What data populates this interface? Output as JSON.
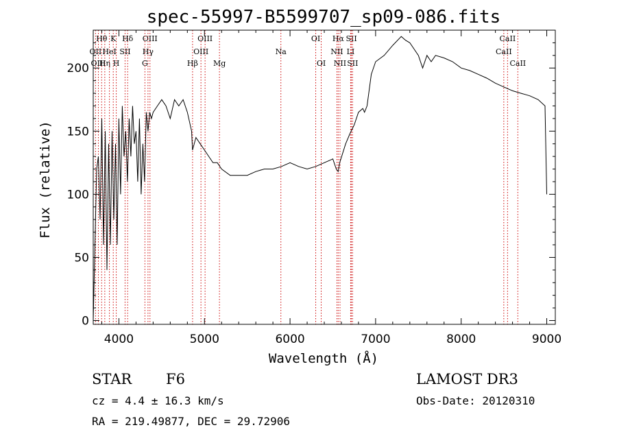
{
  "chart_data": {
    "type": "line",
    "title": "spec-55997-B5599707_sp09-086.fits",
    "xlabel": "Wavelength (Å)",
    "ylabel": "Flux (relative)",
    "xlim": [
      3700,
      9100
    ],
    "ylim": [
      -3,
      230
    ],
    "x_ticks": [
      4000,
      5000,
      6000,
      7000,
      8000,
      9000
    ],
    "y_ticks": [
      0,
      50,
      100,
      150,
      200
    ],
    "x_tick_labels": [
      "4000",
      "5000",
      "6000",
      "7000",
      "8000",
      "9000"
    ],
    "y_tick_labels": [
      "0",
      "50",
      "100",
      "150",
      "200"
    ],
    "line_color": "#000000",
    "marker_color": "#cc0000",
    "series": [
      {
        "x": [
          3700,
          3720,
          3740,
          3760,
          3780,
          3800,
          3820,
          3840,
          3860,
          3880,
          3900,
          3920,
          3940,
          3960,
          3980,
          4000,
          4020,
          4040,
          4060,
          4080,
          4100,
          4120,
          4140,
          4160,
          4180,
          4200,
          4220,
          4240,
          4260,
          4280,
          4300,
          4320,
          4340,
          4360,
          4380,
          4400,
          4450,
          4500,
          4550,
          4600,
          4650,
          4700,
          4750,
          4800,
          4850,
          4860,
          4900,
          4950,
          5000,
          5050,
          5100,
          5150,
          5200,
          5300,
          5400,
          5500,
          5600,
          5700,
          5800,
          5900,
          6000,
          6100,
          6200,
          6300,
          6400,
          6500,
          6540,
          6563,
          6580,
          6650,
          6700,
          6750,
          6800,
          6850,
          6870,
          6900,
          6950,
          7000,
          7100,
          7200,
          7300,
          7350,
          7400,
          7500,
          7550,
          7600,
          7650,
          7700,
          7800,
          7900,
          8000,
          8100,
          8200,
          8300,
          8400,
          8500,
          8600,
          8700,
          8800,
          8900,
          8980,
          9000
        ],
        "y": [
          0,
          60,
          120,
          130,
          80,
          160,
          60,
          150,
          40,
          140,
          60,
          150,
          80,
          140,
          60,
          160,
          100,
          170,
          130,
          150,
          110,
          160,
          130,
          170,
          140,
          150,
          110,
          160,
          100,
          140,
          110,
          165,
          150,
          165,
          160,
          165,
          170,
          175,
          170,
          160,
          175,
          170,
          175,
          165,
          150,
          135,
          145,
          140,
          135,
          130,
          125,
          125,
          120,
          115,
          115,
          115,
          118,
          120,
          120,
          122,
          125,
          122,
          120,
          122,
          125,
          128,
          120,
          118,
          125,
          140,
          148,
          155,
          165,
          168,
          165,
          170,
          195,
          205,
          210,
          218,
          225,
          222,
          220,
          210,
          200,
          210,
          205,
          210,
          208,
          205,
          200,
          198,
          195,
          192,
          188,
          185,
          182,
          180,
          178,
          175,
          170,
          100
        ]
      }
    ],
    "line_markers": [
      {
        "label": "Hθ",
        "wavelength": 3798,
        "row": 0
      },
      {
        "label": "OII",
        "wavelength": 3727,
        "row": 1
      },
      {
        "label": "OIII",
        "wavelength": 3760,
        "row": 2
      },
      {
        "label": "Hη",
        "wavelength": 3835,
        "row": 2
      },
      {
        "label": "HeI",
        "wavelength": 3889,
        "row": 1
      },
      {
        "label": "K",
        "wavelength": 3934,
        "row": 0
      },
      {
        "label": "H",
        "wavelength": 3969,
        "row": 2
      },
      {
        "label": "SII",
        "wavelength": 4072,
        "row": 1
      },
      {
        "label": "Hδ",
        "wavelength": 4102,
        "row": 0
      },
      {
        "label": "OIII",
        "wavelength": 4363,
        "row": 0
      },
      {
        "label": "Hγ",
        "wavelength": 4340,
        "row": 1
      },
      {
        "label": "G",
        "wavelength": 4304,
        "row": 2
      },
      {
        "label": "Hβ",
        "wavelength": 4861,
        "row": 2
      },
      {
        "label": "OIII",
        "wavelength": 5007,
        "row": 0
      },
      {
        "label": "OIII",
        "wavelength": 4959,
        "row": 1
      },
      {
        "label": "Mg",
        "wavelength": 5175,
        "row": 2
      },
      {
        "label": "Na",
        "wavelength": 5893,
        "row": 1
      },
      {
        "label": "OI",
        "wavelength": 6300,
        "row": 0
      },
      {
        "label": "OI",
        "wavelength": 6364,
        "row": 2
      },
      {
        "label": "Hα",
        "wavelength": 6563,
        "row": 0
      },
      {
        "label": "NII",
        "wavelength": 6548,
        "row": 1
      },
      {
        "label": "NII",
        "wavelength": 6584,
        "row": 2
      },
      {
        "label": "SII",
        "wavelength": 6717,
        "row": 0
      },
      {
        "label": "LI",
        "wavelength": 6708,
        "row": 1
      },
      {
        "label": "SII",
        "wavelength": 6731,
        "row": 2
      },
      {
        "label": "CaII",
        "wavelength": 8542,
        "row": 0
      },
      {
        "label": "CaII",
        "wavelength": 8498,
        "row": 1
      },
      {
        "label": "CaII",
        "wavelength": 8662,
        "row": 2
      }
    ]
  },
  "info": {
    "class_label": "STAR",
    "subclass": "F6",
    "survey": "LAMOST DR3",
    "cz": "cz = 4.4 ± 16.3 km/s",
    "obs_date": "Obs-Date: 20120310",
    "coords": "RA = 219.49877, DEC =  29.72906"
  }
}
